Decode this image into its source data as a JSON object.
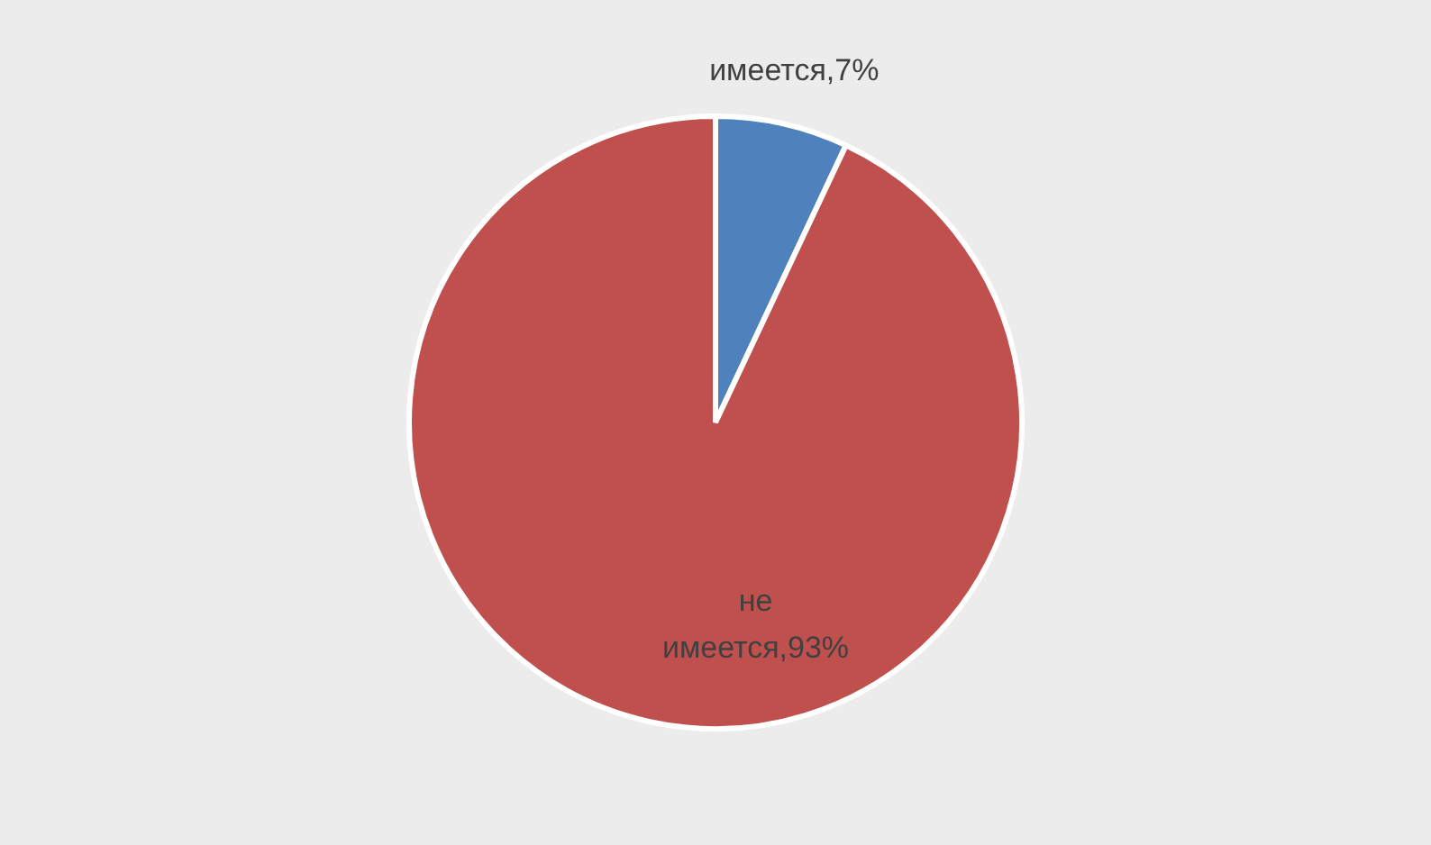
{
  "chart_data": {
    "type": "pie",
    "categories": [
      "имеется",
      "не имеется"
    ],
    "values": [
      7,
      93
    ],
    "colors": [
      "#4f81bd",
      "#c0504d"
    ],
    "value_labels": [
      "7%",
      "93%"
    ]
  }
}
